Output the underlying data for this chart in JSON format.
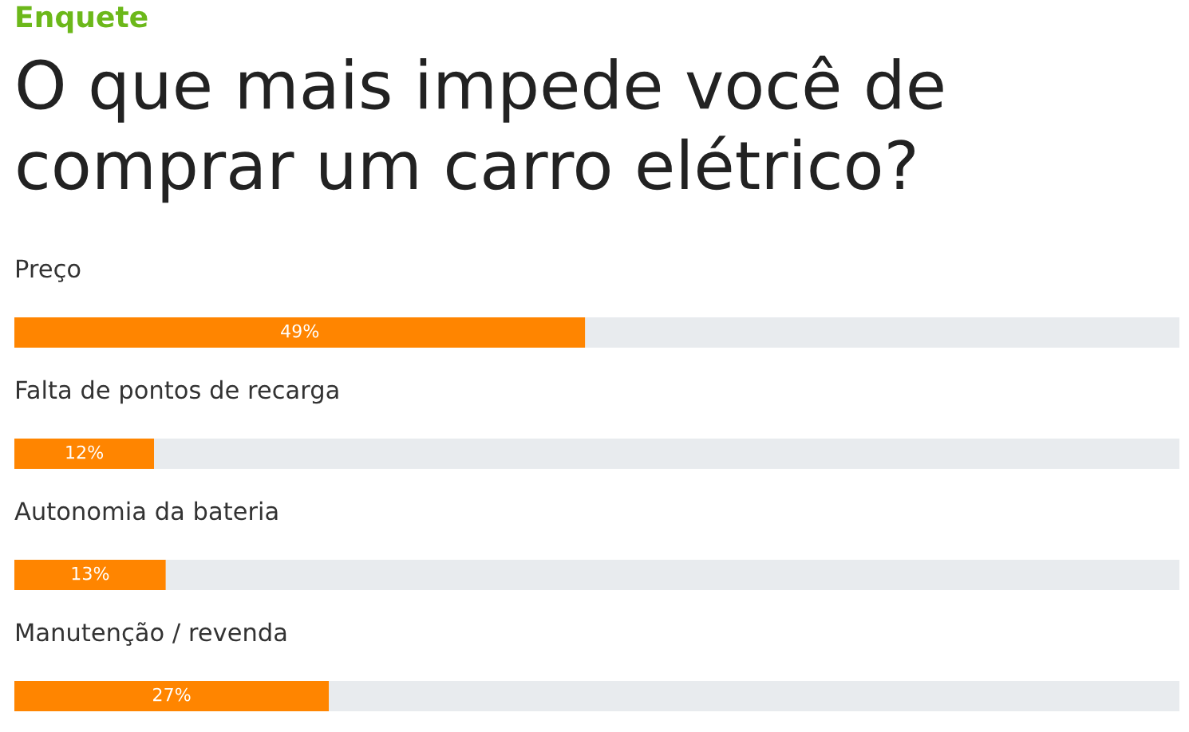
{
  "chart_data": {
    "type": "bar",
    "orientation": "horizontal",
    "stacked": true,
    "subtitle": "Enquete",
    "title": "O que mais impede você de comprar um carro elétrico?",
    "categories": [
      "Preço",
      "Falta de pontos de recarga",
      "Autonomia da bateria",
      "Manutenção / revenda"
    ],
    "series": [
      {
        "color": "#ff8500",
        "values": [
          49,
          12,
          13,
          27
        ],
        "value_labels": [
          "49%",
          "12%",
          "13%",
          "27%"
        ]
      },
      {
        "color": "#e8ebee",
        "values": [
          51,
          88,
          87,
          73
        ]
      }
    ],
    "xlim": [
      0,
      100
    ],
    "tick_labels": "y"
  }
}
